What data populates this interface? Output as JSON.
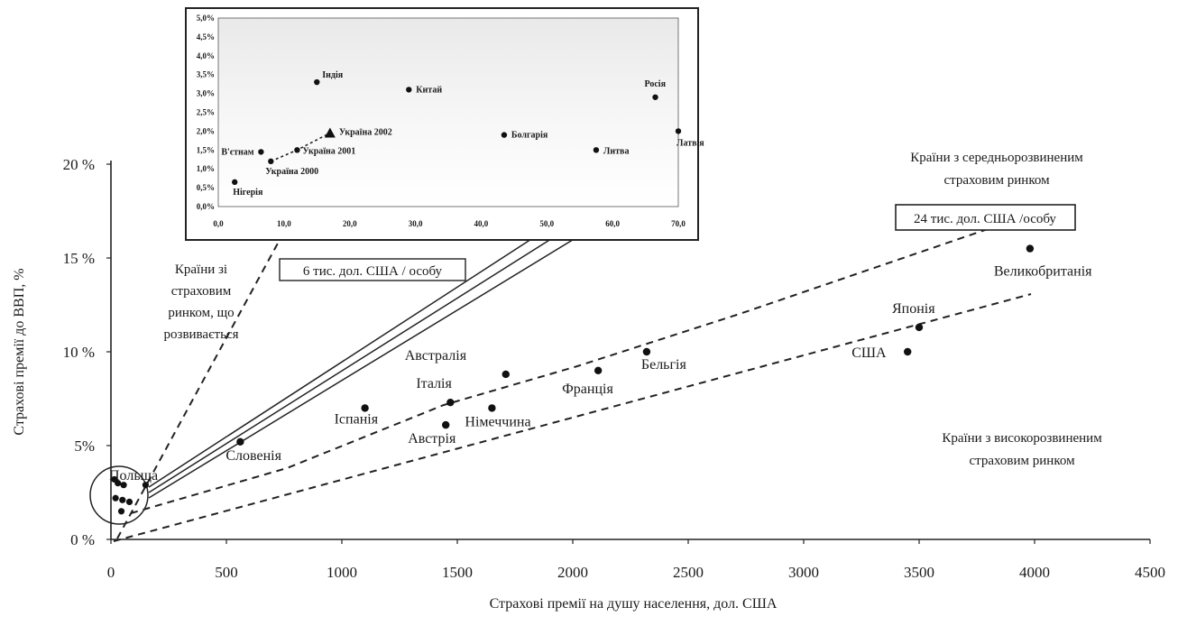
{
  "chart_data": [
    {
      "type": "scatter",
      "title": "",
      "xlabel": "Страхові премії на душу населення, дол. США",
      "ylabel": "Страхові премії до ВВП, %",
      "xlim": [
        0,
        4500
      ],
      "ylim": [
        0,
        20
      ],
      "x_ticks": [
        "0",
        "500",
        "1000",
        "1500",
        "2000",
        "2500",
        "3000",
        "3500",
        "4000",
        "4500"
      ],
      "y_ticks": [
        "0 %",
        "5%",
        "10 %",
        "15 %",
        "20 %"
      ],
      "grid": false,
      "points": [
        {
          "label": "Польща",
          "x": 0,
          "y": 0
        },
        {
          "label": "Словенія",
          "x": 560,
          "y": 5.2
        },
        {
          "label": "Іспанія",
          "x": 1100,
          "y": 7.0
        },
        {
          "label": "Італія",
          "x": 1470,
          "y": 7.3
        },
        {
          "label": "Австрія",
          "x": 1450,
          "y": 6.1
        },
        {
          "label": "Австралія",
          "x": 1710,
          "y": 8.8
        },
        {
          "label": "Німеччина",
          "x": 1650,
          "y": 7.0
        },
        {
          "label": "Франція",
          "x": 2110,
          "y": 9.0
        },
        {
          "label": "Бельгія",
          "x": 2320,
          "y": 10.0
        },
        {
          "label": "США",
          "x": 3450,
          "y": 10.0
        },
        {
          "label": "Японія",
          "x": 3500,
          "y": 11.3
        },
        {
          "label": "Великобританія",
          "x": 3980,
          "y": 15.5
        }
      ],
      "cluster_points": [
        {
          "x": 15,
          "y": 3.2
        },
        {
          "x": 30,
          "y": 3.0
        },
        {
          "x": 55,
          "y": 2.9
        },
        {
          "x": 150,
          "y": 2.9
        },
        {
          "x": 20,
          "y": 2.2
        },
        {
          "x": 50,
          "y": 2.1
        },
        {
          "x": 80,
          "y": 2.0
        },
        {
          "x": 45,
          "y": 1.5
        }
      ],
      "annotations": {
        "developing": [
          "Країни зі",
          "страховим",
          "ринком, що",
          "розвивається"
        ],
        "mid": [
          "Країни з середньорозвиненим",
          "страховим ринком"
        ],
        "high": [
          "Країни з високорозвиненим",
          "страховим ринком"
        ],
        "box_6k": "6 тис. дол. США  / особу",
        "box_24k": "24 тис. дол. США /особу"
      }
    },
    {
      "type": "scatter",
      "title": "",
      "xlim": [
        0,
        70
      ],
      "ylim": [
        0,
        5
      ],
      "x_ticks": [
        "0,0",
        "10,0",
        "20,0",
        "30,0",
        "40,0",
        "50,0",
        "60,0",
        "70,0"
      ],
      "y_ticks": [
        "0,0%",
        "0,5%",
        "1,0%",
        "1,5%",
        "2,0%",
        "2,5%",
        "3,0%",
        "3,5%",
        "4,0%",
        "4,5%",
        "5,0%"
      ],
      "points": [
        {
          "label": "Нігерія",
          "x": 2.5,
          "y": 0.65
        },
        {
          "label": "В'єтнам",
          "x": 6.5,
          "y": 1.45
        },
        {
          "label": "Україна 2000",
          "x": 8.0,
          "y": 1.2
        },
        {
          "label": "Україна 2001",
          "x": 12.0,
          "y": 1.5
        },
        {
          "label": "Україна 2002",
          "x": 17.0,
          "y": 1.95
        },
        {
          "label": "Індія",
          "x": 15.0,
          "y": 3.3
        },
        {
          "label": "Китай",
          "x": 29.0,
          "y": 3.1
        },
        {
          "label": "Болгарія",
          "x": 43.5,
          "y": 1.9
        },
        {
          "label": "Литва",
          "x": 57.5,
          "y": 1.5
        },
        {
          "label": "Росія",
          "x": 66.5,
          "y": 2.9
        },
        {
          "label": "Латвія",
          "x": 70.0,
          "y": 2.0
        }
      ],
      "labels": {
        "Нігерія": "Нігерія",
        "В'єтнам": "В'єтнам",
        "Україна 2000": "Україна 2000",
        "Україна 2001": "Україна 2001",
        "Україна 2002": "Україна 2002",
        "Індія": "Індія",
        "Китай": "Китай",
        "Болгарія": "Болгарія",
        "Литва": "Литва",
        "Росія": "Росія",
        "Латвія": "Латвія"
      }
    }
  ]
}
